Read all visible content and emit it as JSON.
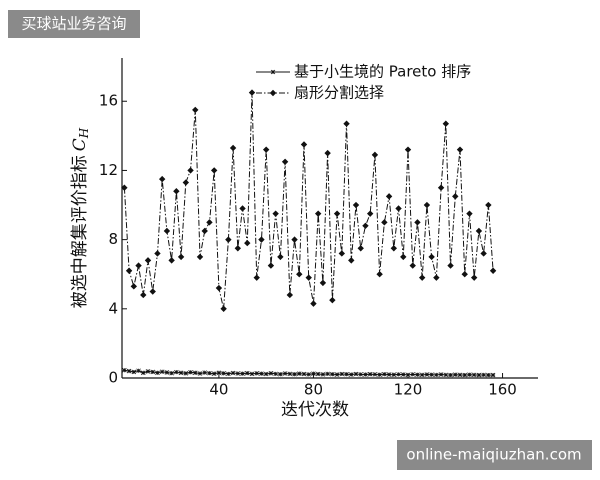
{
  "chart_data": {
    "type": "line",
    "ylabel": "被选中解集评价指标",
    "ylabel_symbol": "C",
    "ylabel_subscript": "H",
    "xlabel": "迭代次数",
    "x": [
      0,
      2,
      4,
      6,
      8,
      10,
      12,
      14,
      16,
      18,
      20,
      22,
      24,
      26,
      28,
      30,
      32,
      34,
      36,
      38,
      40,
      42,
      44,
      46,
      48,
      50,
      52,
      54,
      56,
      58,
      60,
      62,
      64,
      66,
      68,
      70,
      72,
      74,
      76,
      78,
      80,
      82,
      84,
      86,
      88,
      90,
      92,
      94,
      96,
      98,
      100,
      102,
      104,
      106,
      108,
      110,
      112,
      114,
      116,
      118,
      120,
      122,
      124,
      126,
      128,
      130,
      132,
      134,
      136,
      138,
      140,
      142,
      144,
      146,
      148,
      150,
      152,
      154,
      156
    ],
    "series": [
      {
        "name": "基于小生境的 Pareto 排序",
        "color": "#111111",
        "marker": "star",
        "dash": "solid",
        "values": [
          0.45,
          0.4,
          0.35,
          0.42,
          0.3,
          0.38,
          0.35,
          0.3,
          0.36,
          0.32,
          0.28,
          0.34,
          0.3,
          0.27,
          0.33,
          0.3,
          0.26,
          0.31,
          0.28,
          0.25,
          0.3,
          0.27,
          0.24,
          0.29,
          0.26,
          0.25,
          0.28,
          0.24,
          0.27,
          0.25,
          0.23,
          0.27,
          0.24,
          0.22,
          0.26,
          0.24,
          0.22,
          0.25,
          0.23,
          0.21,
          0.25,
          0.23,
          0.21,
          0.24,
          0.22,
          0.2,
          0.23,
          0.22,
          0.2,
          0.23,
          0.21,
          0.2,
          0.22,
          0.21,
          0.19,
          0.22,
          0.2,
          0.19,
          0.21,
          0.2,
          0.18,
          0.21,
          0.19,
          0.18,
          0.2,
          0.19,
          0.18,
          0.2,
          0.18,
          0.17,
          0.19,
          0.18,
          0.17,
          0.19,
          0.18,
          0.17,
          0.18,
          0.17,
          0.17
        ]
      },
      {
        "name": "扇形分割选择",
        "color": "#111111",
        "marker": "diamond",
        "dash": "dashdot",
        "values": [
          11,
          6.2,
          5.3,
          6.5,
          4.8,
          6.8,
          5.0,
          7.2,
          11.5,
          8.5,
          6.8,
          10.8,
          7.0,
          11.3,
          12.0,
          15.5,
          7.0,
          8.5,
          9.0,
          12.0,
          5.2,
          4.0,
          8.0,
          13.3,
          7.5,
          9.8,
          7.8,
          16.5,
          5.8,
          8.0,
          13.2,
          6.5,
          9.5,
          7.0,
          12.5,
          4.8,
          8.0,
          6.0,
          13.5,
          5.8,
          4.3,
          9.5,
          5.5,
          13.0,
          4.5,
          9.5,
          7.2,
          14.7,
          6.8,
          10.0,
          7.5,
          8.8,
          9.5,
          12.9,
          6.0,
          9.0,
          10.5,
          7.5,
          9.8,
          7.0,
          13.2,
          6.5,
          9.0,
          5.8,
          10.0,
          7.0,
          5.8,
          11.0,
          14.7,
          6.5,
          10.5,
          13.2,
          6.0,
          9.5,
          5.8,
          8.5,
          7.2,
          10.0,
          6.2
        ]
      }
    ],
    "xlim": [
      -1,
      175
    ],
    "ylim": [
      0,
      18.5
    ],
    "xticks": [
      40,
      80,
      120,
      160
    ],
    "yticks": [
      0,
      4,
      8,
      12,
      16
    ],
    "grid": false,
    "legend": "top"
  },
  "watermark": {
    "top_left": "买球站业务咨询",
    "bottom_right": "online-maiqiuzhan.com"
  }
}
